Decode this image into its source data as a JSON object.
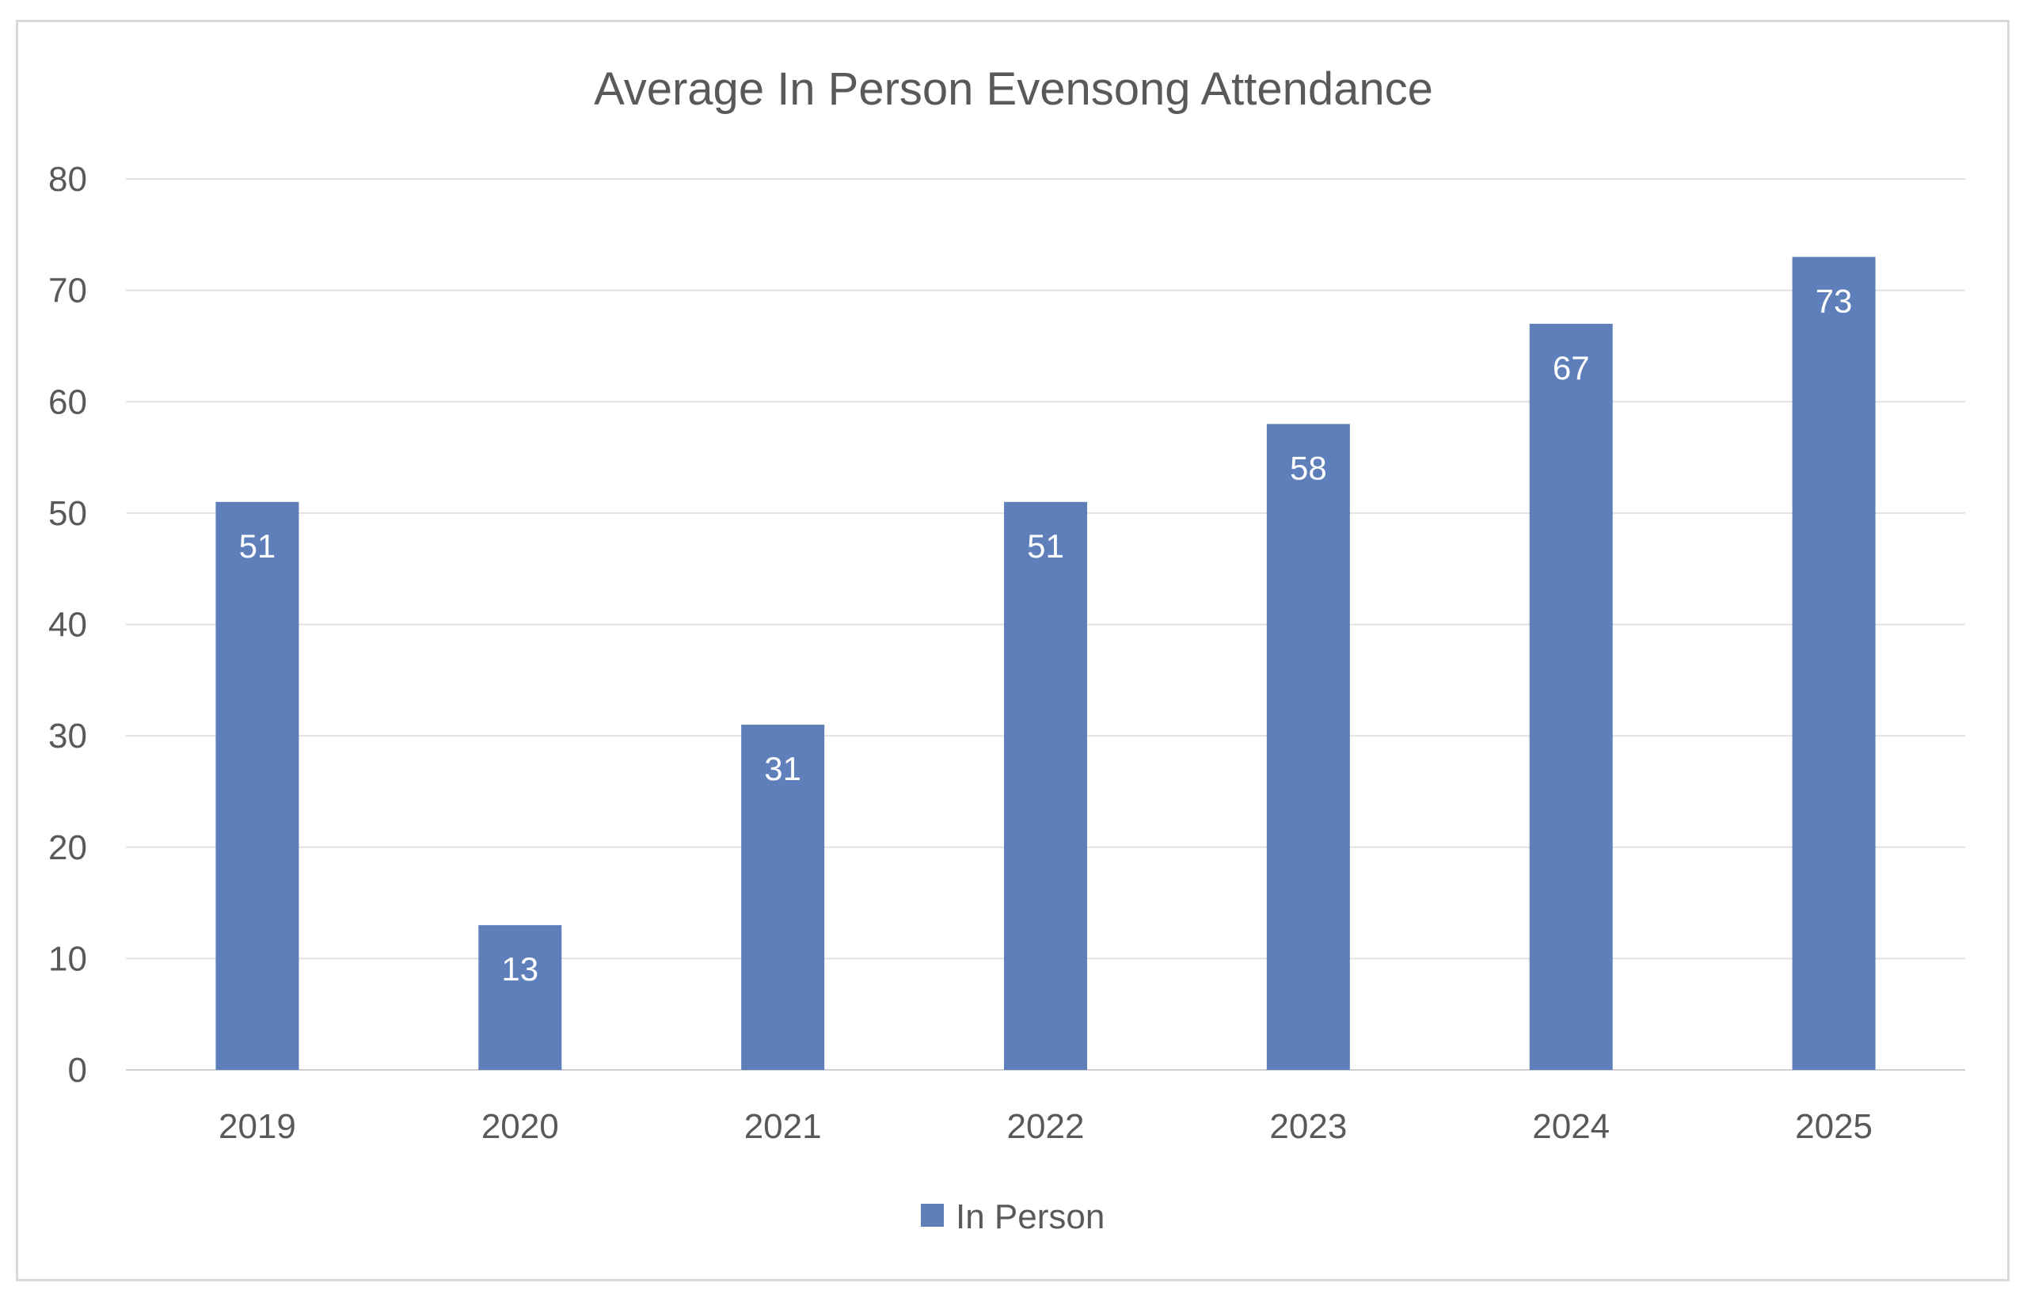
{
  "chart_data": {
    "type": "bar",
    "title": "Average In Person Evensong Attendance",
    "categories": [
      "2019",
      "2020",
      "2021",
      "2022",
      "2023",
      "2024",
      "2025"
    ],
    "series": [
      {
        "name": "In Person",
        "values": [
          51,
          13,
          31,
          51,
          58,
          67,
          73
        ],
        "color": "#5f7fbb"
      }
    ],
    "xlabel": "",
    "ylabel": "",
    "ylim": [
      0,
      80
    ],
    "yticks": [
      0,
      10,
      20,
      30,
      40,
      50,
      60,
      70,
      80
    ],
    "grid": true,
    "legend": "bottom",
    "data_labels": true
  }
}
